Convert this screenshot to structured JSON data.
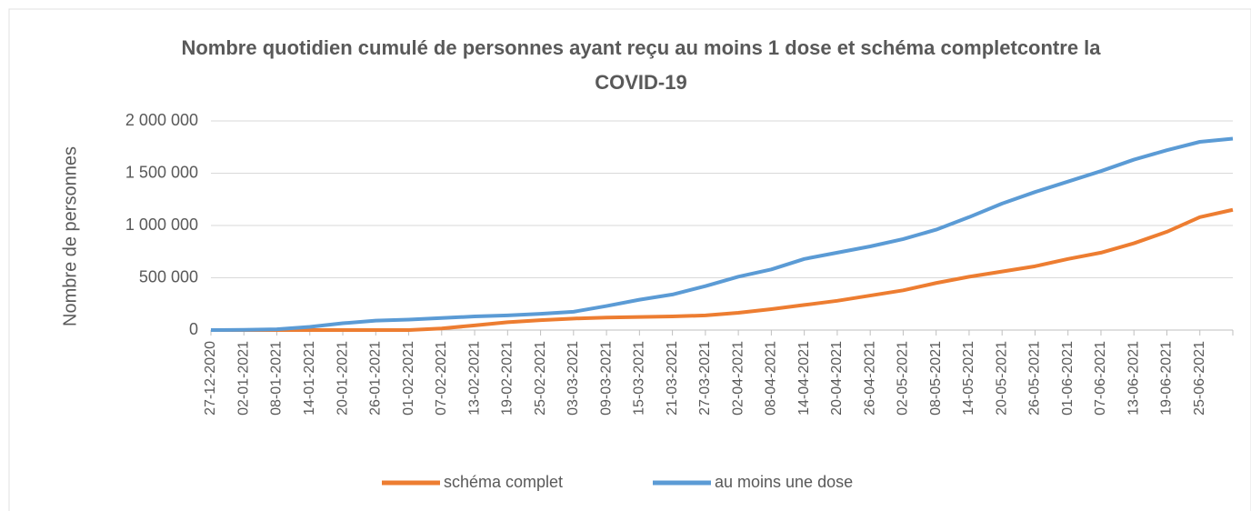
{
  "chart_data": {
    "type": "line",
    "title": "Nombre quotidien cumulé de personnes ayant reçu au moins 1 dose et schéma completcontre la COVID-19",
    "y_label": "Nombre de personnes",
    "categories": [
      "27-12-2020",
      "02-01-2021",
      "08-01-2021",
      "14-01-2021",
      "20-01-2021",
      "26-01-2021",
      "01-02-2021",
      "07-02-2021",
      "13-02-2021",
      "19-02-2021",
      "25-02-2021",
      "03-03-2021",
      "09-03-2021",
      "15-03-2021",
      "21-03-2021",
      "27-03-2021",
      "02-04-2021",
      "08-04-2021",
      "14-04-2021",
      "20-04-2021",
      "26-04-2021",
      "02-05-2021",
      "08-05-2021",
      "14-05-2021",
      "20-05-2021",
      "26-05-2021",
      "01-06-2021",
      "07-06-2021",
      "13-06-2021",
      "19-06-2021",
      "25-06-2021",
      null
    ],
    "series": [
      {
        "name": "schéma complet",
        "color": "#ed7d31",
        "values": [
          0,
          0,
          0,
          0,
          0,
          0,
          0,
          15000,
          45000,
          75000,
          95000,
          110000,
          120000,
          125000,
          130000,
          140000,
          165000,
          200000,
          240000,
          280000,
          330000,
          380000,
          450000,
          510000,
          560000,
          610000,
          680000,
          740000,
          830000,
          940000,
          1080000,
          1150000
        ]
      },
      {
        "name": "au moins une dose",
        "color": "#5b9bd5",
        "values": [
          0,
          2000,
          8000,
          30000,
          65000,
          90000,
          100000,
          115000,
          130000,
          140000,
          155000,
          175000,
          230000,
          290000,
          340000,
          420000,
          510000,
          580000,
          680000,
          740000,
          800000,
          870000,
          960000,
          1080000,
          1210000,
          1320000,
          1420000,
          1520000,
          1630000,
          1720000,
          1800000,
          1830000
        ]
      }
    ],
    "ylim": [
      0,
      2000000
    ],
    "yticks": [
      0,
      {
        "value": 500000,
        "label": "500 000"
      },
      {
        "value": 1000000,
        "label": "1 000 000"
      },
      {
        "value": 1500000,
        "label": "1 500 000"
      },
      {
        "value": 2000000,
        "label": "2 000 000"
      }
    ],
    "grid": true,
    "legend": "bottom"
  }
}
